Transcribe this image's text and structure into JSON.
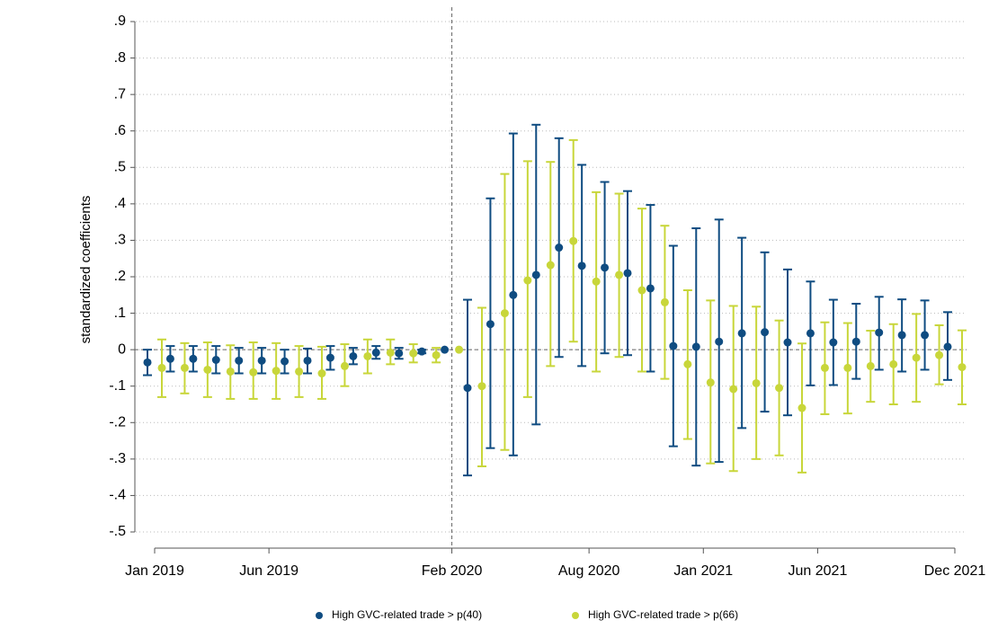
{
  "chart_data": {
    "type": "errorbar",
    "y_label": "standardized coefficients",
    "categories": [
      "Jan 2019",
      null,
      null,
      null,
      null,
      "Jun 2019",
      null,
      null,
      null,
      null,
      null,
      null,
      null,
      "Feb 2020",
      null,
      null,
      null,
      null,
      null,
      "Aug 2020",
      null,
      null,
      null,
      null,
      "Jan 2021",
      null,
      null,
      null,
      null,
      "Jun 2021",
      null,
      null,
      null,
      null,
      null,
      "Dec 2021"
    ],
    "ylim": [
      -0.5,
      0.9
    ],
    "yticks": [
      {
        "value": 0.9,
        "label": ".9"
      },
      {
        "value": 0.8,
        "label": ".8"
      },
      {
        "value": 0.7,
        "label": ".7"
      },
      {
        "value": 0.6,
        "label": ".6"
      },
      {
        "value": 0.5,
        "label": ".5"
      },
      {
        "value": 0.4,
        "label": ".4"
      },
      {
        "value": 0.3,
        "label": ".3"
      },
      {
        "value": 0.2,
        "label": ".2"
      },
      {
        "value": 0.1,
        "label": ".1"
      },
      0,
      {
        "value": -0.1,
        "label": "-.1"
      },
      {
        "value": -0.2,
        "label": "-.2"
      },
      {
        "value": -0.3,
        "label": "-.3"
      },
      {
        "value": -0.4,
        "label": "-.4"
      },
      {
        "value": -0.5,
        "label": "-.5"
      }
    ],
    "grid": true,
    "hline_at": 0,
    "vline_at": 13,
    "legend": "bottom",
    "series": [
      {
        "name": "High GVC-related trade > p(40)",
        "color": "#0f4c81",
        "values": [
          -0.035,
          -0.025,
          -0.025,
          -0.028,
          -0.03,
          -0.03,
          -0.032,
          -0.03,
          -0.022,
          -0.018,
          -0.008,
          -0.01,
          -0.005,
          0,
          -0.105,
          0.07,
          0.15,
          0.205,
          0.28,
          0.23,
          0.225,
          0.21,
          0.168,
          0.01,
          0.008,
          0.022,
          0.045,
          0.048,
          0.02,
          0.045,
          0.02,
          0.022,
          0.047,
          0.04,
          0.04,
          0.008
        ],
        "lower": [
          -0.07,
          -0.06,
          -0.06,
          -0.065,
          -0.065,
          -0.065,
          -0.065,
          -0.065,
          -0.055,
          -0.04,
          -0.025,
          -0.025,
          -0.01,
          null,
          -0.345,
          -0.27,
          -0.29,
          -0.205,
          -0.02,
          -0.045,
          -0.01,
          -0.015,
          -0.06,
          -0.265,
          -0.318,
          -0.308,
          -0.215,
          -0.17,
          -0.18,
          -0.098,
          -0.097,
          -0.08,
          -0.055,
          -0.06,
          -0.055,
          -0.083
        ],
        "upper": [
          0.0,
          0.01,
          0.01,
          0.01,
          0.005,
          0.005,
          0.0,
          0.003,
          0.01,
          0.005,
          0.01,
          0.005,
          0.0,
          null,
          0.137,
          0.415,
          0.593,
          0.617,
          0.58,
          0.507,
          0.46,
          0.435,
          0.397,
          0.285,
          0.333,
          0.357,
          0.307,
          0.267,
          0.22,
          0.187,
          0.137,
          0.126,
          0.145,
          0.138,
          0.135,
          0.103
        ]
      },
      {
        "name": "High GVC-related trade > p(66)",
        "color": "#c8d63a",
        "values": [
          -0.05,
          -0.05,
          -0.055,
          -0.06,
          -0.062,
          -0.058,
          -0.06,
          -0.065,
          -0.045,
          -0.018,
          -0.008,
          -0.01,
          -0.015,
          0,
          -0.1,
          0.1,
          0.19,
          0.232,
          0.298,
          0.187,
          0.205,
          0.163,
          0.13,
          -0.04,
          -0.09,
          -0.108,
          -0.092,
          -0.105,
          -0.16,
          -0.05,
          -0.05,
          -0.045,
          -0.04,
          -0.022,
          -0.015,
          -0.048
        ],
        "lower": [
          -0.13,
          -0.12,
          -0.13,
          -0.135,
          -0.135,
          -0.135,
          -0.13,
          -0.135,
          -0.1,
          -0.065,
          -0.04,
          -0.035,
          -0.035,
          null,
          -0.32,
          -0.275,
          -0.13,
          -0.045,
          0.022,
          -0.06,
          -0.02,
          -0.06,
          -0.08,
          -0.245,
          -0.312,
          -0.333,
          -0.3,
          -0.29,
          -0.337,
          -0.177,
          -0.175,
          -0.143,
          -0.15,
          -0.143,
          -0.095,
          -0.15
        ],
        "upper": [
          0.028,
          0.018,
          0.02,
          0.012,
          0.02,
          0.018,
          0.01,
          0.008,
          0.015,
          0.028,
          0.028,
          0.015,
          0.005,
          null,
          0.115,
          0.482,
          0.517,
          0.515,
          0.575,
          0.432,
          0.428,
          0.387,
          0.34,
          0.163,
          0.135,
          0.12,
          0.118,
          0.08,
          0.017,
          0.075,
          0.073,
          0.052,
          0.07,
          0.098,
          0.067,
          0.053
        ]
      }
    ]
  }
}
